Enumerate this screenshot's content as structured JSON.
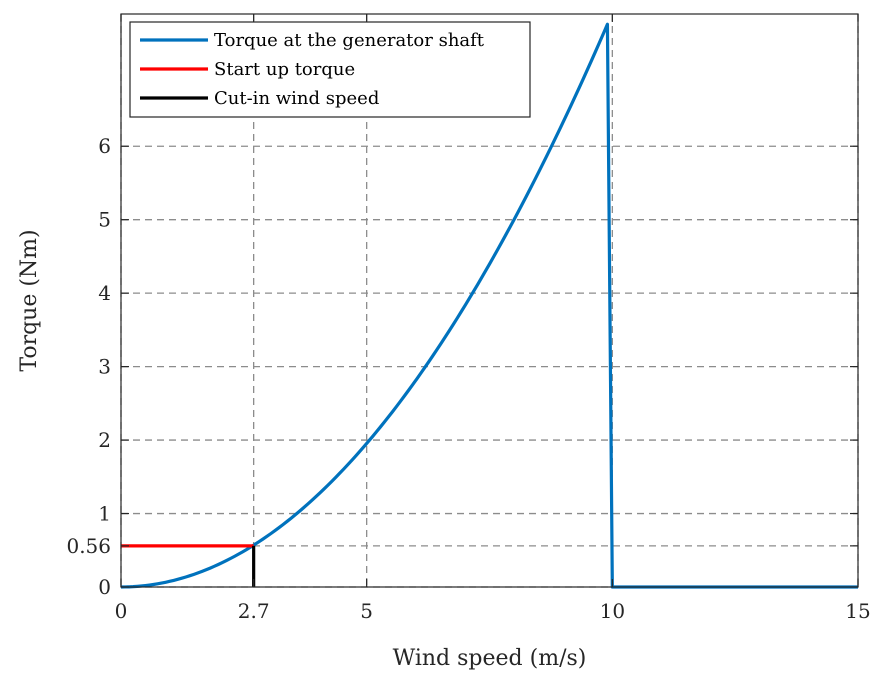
{
  "chart_data": {
    "type": "line",
    "xlabel": "Wind speed (m/s)",
    "ylabel": "Torque (Nm)",
    "xlim": [
      0,
      15
    ],
    "ylim": [
      0,
      7.8
    ],
    "grid": true,
    "grid_style": "dashed",
    "legend_position": "top-left",
    "xticks": [
      0,
      2.7,
      5,
      10,
      15
    ],
    "xtick_labels": [
      "0",
      "2.7",
      "5",
      "10",
      "15"
    ],
    "yticks": [
      0,
      0.56,
      1,
      2,
      3,
      4,
      5,
      6
    ],
    "ytick_labels": [
      "0",
      "0.56",
      "1",
      "2",
      "3",
      "4",
      "5",
      "6"
    ],
    "series": [
      {
        "name": "Torque at the generator shaft",
        "color": "#0072BD",
        "x": [
          0,
          0.5,
          1,
          1.5,
          2,
          2.7,
          3,
          3.5,
          4,
          4.5,
          5,
          5.5,
          6,
          6.5,
          7,
          7.5,
          8,
          8.5,
          9,
          9.5,
          9.9,
          10,
          15
        ],
        "y": [
          0,
          0.02,
          0.08,
          0.18,
          0.31,
          0.56,
          0.7,
          0.98,
          1.28,
          1.6,
          1.97,
          2.38,
          2.82,
          3.3,
          3.82,
          4.39,
          5.0,
          5.62,
          6.3,
          7.01,
          7.66,
          0,
          0
        ]
      },
      {
        "name": "Start up torque",
        "color": "#FF0000",
        "x": [
          0,
          2.7
        ],
        "y": [
          0.56,
          0.56
        ]
      },
      {
        "name": "Cut-in wind speed",
        "color": "#000000",
        "x": [
          2.7,
          2.7
        ],
        "y": [
          0,
          0.56
        ]
      }
    ]
  }
}
